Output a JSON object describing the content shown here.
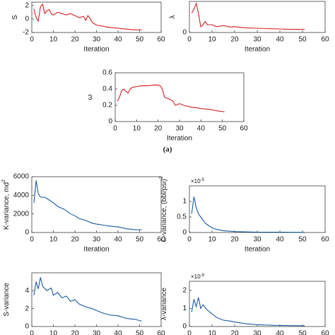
{
  "caption": "(a)",
  "chart_data": [
    {
      "type": "line",
      "ylabel": "S",
      "xlabel": "Iteration",
      "color": "#d62728",
      "xlim": [
        0,
        60
      ],
      "xticks": [
        0,
        10,
        20,
        30,
        40,
        50,
        60
      ],
      "ylim": [
        -2,
        2.5
      ],
      "yticks": [
        -2,
        0,
        2
      ],
      "x": [
        1,
        2,
        3,
        4,
        5,
        6,
        7,
        8,
        9,
        10,
        12,
        14,
        16,
        18,
        20,
        22,
        24,
        25,
        26,
        27,
        28,
        30,
        32,
        35,
        38,
        41,
        44,
        47,
        51
      ],
      "values": [
        1.5,
        0.2,
        -0.3,
        1.8,
        2.2,
        0.8,
        1.2,
        1.4,
        0.8,
        0.6,
        1.0,
        0.8,
        0.6,
        0.8,
        0.5,
        0.2,
        0.4,
        -0.2,
        0.5,
        0.1,
        -0.5,
        -0.9,
        -1.0,
        -1.2,
        -1.3,
        -1.4,
        -1.5,
        -1.6,
        -1.6
      ]
    },
    {
      "type": "line",
      "ylabel": "λ",
      "xlabel": "Iteration",
      "color": "#d62728",
      "xlim": [
        0,
        60
      ],
      "xticks": [
        0,
        10,
        20,
        30,
        40,
        50,
        60
      ],
      "ylim": [
        0,
        0.8
      ],
      "yticks": [
        0
      ],
      "x": [
        1,
        2,
        3,
        4,
        5,
        6,
        7,
        8,
        10,
        12,
        15,
        18,
        20,
        25,
        30,
        35,
        40,
        45,
        51
      ],
      "values": [
        0.5,
        0.6,
        0.75,
        0.5,
        0.15,
        0.2,
        0.28,
        0.2,
        0.2,
        0.15,
        0.18,
        0.14,
        0.15,
        0.12,
        0.11,
        0.1,
        0.09,
        0.08,
        0.08
      ]
    },
    {
      "type": "line",
      "ylabel": "ω",
      "xlabel": "Iteration",
      "color": "#d62728",
      "xlim": [
        0,
        60
      ],
      "xticks": [
        0,
        10,
        20,
        30,
        40,
        50,
        60
      ],
      "ylim": [
        0,
        0.6
      ],
      "yticks": [
        0,
        0.2,
        0.4,
        0.6
      ],
      "x": [
        1,
        2,
        3,
        4,
        5,
        6,
        7,
        8,
        10,
        12,
        15,
        18,
        20,
        21,
        22,
        23,
        25,
        27,
        28,
        30,
        32,
        35,
        38,
        40,
        44,
        48,
        51
      ],
      "values": [
        0.25,
        0.3,
        0.38,
        0.4,
        0.37,
        0.35,
        0.4,
        0.42,
        0.43,
        0.44,
        0.44,
        0.45,
        0.45,
        0.44,
        0.4,
        0.3,
        0.28,
        0.25,
        0.2,
        0.22,
        0.2,
        0.18,
        0.17,
        0.16,
        0.15,
        0.13,
        0.12
      ]
    },
    {
      "type": "line",
      "ylabel": "K-variance, md",
      "ylabel_sup": "2",
      "xlabel": "Iteration",
      "color": "#1f5fa8",
      "xlim": [
        0,
        60
      ],
      "xticks": [
        0,
        10,
        20,
        30,
        40,
        50,
        60
      ],
      "ylim": [
        0,
        6000
      ],
      "yticks": [
        0,
        2000,
        4000,
        6000
      ],
      "x": [
        1,
        2,
        3,
        4,
        6,
        8,
        10,
        12,
        15,
        18,
        20,
        22,
        25,
        28,
        30,
        33,
        36,
        40,
        44,
        48,
        51
      ],
      "values": [
        3200,
        5600,
        4200,
        3800,
        3800,
        3500,
        3200,
        2800,
        2500,
        2000,
        1800,
        1500,
        1300,
        1000,
        900,
        800,
        700,
        600,
        400,
        300,
        300
      ]
    },
    {
      "type": "line",
      "ylabel": "C-variance, (bbl/psi)",
      "ylabel_sup": "2",
      "xlabel": "Iteration",
      "color": "#1f5fa8",
      "multiplier": "×10",
      "multiplier_sup": "-5",
      "xlim": [
        0,
        60
      ],
      "xticks": [
        0,
        10,
        20,
        30,
        40,
        50,
        60
      ],
      "ylim": [
        0,
        1.5
      ],
      "yticks": [
        0,
        0.5,
        1
      ],
      "x": [
        1,
        2,
        3,
        4,
        5,
        6,
        7,
        8,
        10,
        12,
        15,
        18,
        20,
        25,
        30,
        40,
        51
      ],
      "values": [
        0.6,
        1.15,
        0.8,
        0.6,
        0.5,
        0.4,
        0.3,
        0.25,
        0.15,
        0.1,
        0.06,
        0.04,
        0.03,
        0.02,
        0.01,
        0.01,
        0.005
      ]
    },
    {
      "type": "line",
      "ylabel": "S-variance",
      "color": "#1f5fa8",
      "xlim": [
        0,
        60
      ],
      "xticks": [
        0,
        10,
        20,
        30,
        40,
        50,
        60
      ],
      "ylim": [
        0,
        6
      ],
      "yticks": [
        0,
        2,
        4
      ],
      "x": [
        1,
        2,
        3,
        4,
        5,
        7,
        9,
        10,
        12,
        14,
        16,
        18,
        20,
        22,
        25,
        28,
        30,
        33,
        36,
        40,
        44,
        48,
        51
      ],
      "values": [
        3.5,
        5,
        4.2,
        5.5,
        4.5,
        4,
        4.3,
        3.5,
        3.8,
        3.2,
        3.4,
        2.8,
        3.0,
        2.5,
        2.2,
        2.0,
        1.8,
        1.5,
        1.3,
        1.2,
        0.9,
        0.8,
        0.6
      ]
    },
    {
      "type": "line",
      "ylabel": "λ-variance",
      "color": "#1f5fa8",
      "multiplier": "×10",
      "multiplier_sup": "-9",
      "xlim": [
        0,
        60
      ],
      "xticks": [
        0,
        10,
        20,
        30,
        40,
        50,
        60
      ],
      "ylim": [
        0,
        2.5
      ],
      "yticks": [
        0,
        1,
        2
      ],
      "x": [
        1,
        2,
        3,
        4,
        5,
        6,
        8,
        10,
        12,
        15,
        18,
        20,
        25,
        30,
        35,
        40,
        45,
        51
      ],
      "values": [
        0.8,
        1.5,
        1.1,
        1.6,
        1.0,
        1.2,
        0.9,
        0.7,
        0.5,
        0.35,
        0.3,
        0.25,
        0.15,
        0.1,
        0.08,
        0.06,
        0.05,
        0.04
      ]
    }
  ]
}
